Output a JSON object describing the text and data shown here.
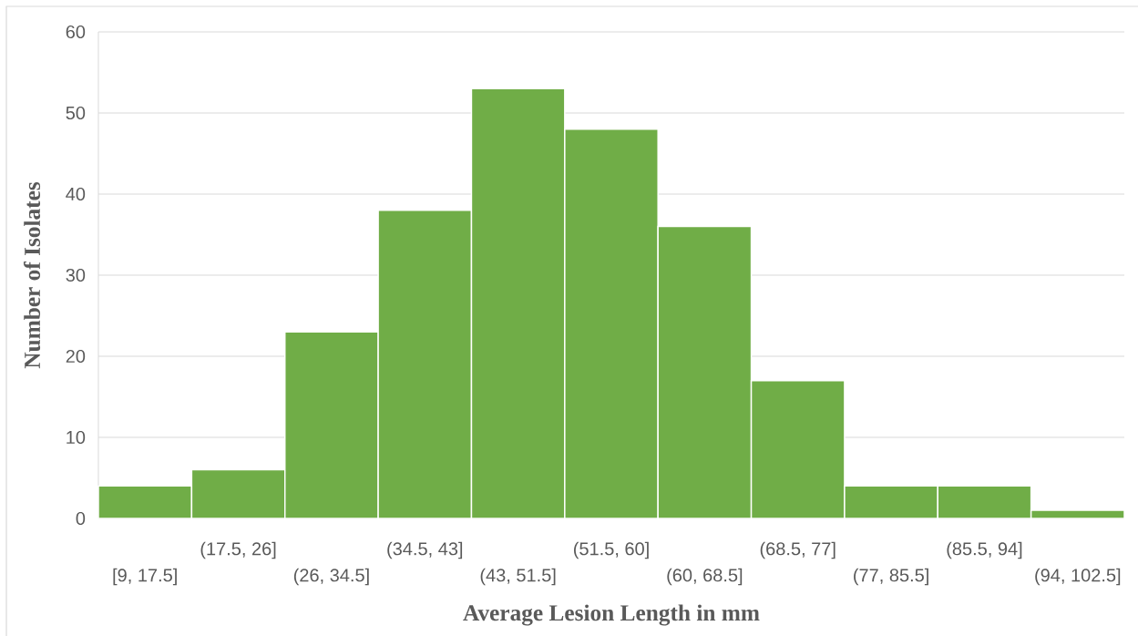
{
  "chart_data": {
    "type": "histogram",
    "xlabel": "Average Lesion Length in mm",
    "ylabel": "Number of Isolates",
    "categories": [
      "[9, 17.5]",
      "(17.5, 26]",
      "(26, 34.5]",
      "(34.5, 43]",
      "(43, 51.5]",
      "(51.5, 60]",
      "(60, 68.5]",
      "(68.5, 77]",
      "(77, 85.5]",
      "(85.5, 94]",
      "(94, 102.5]"
    ],
    "values": [
      4,
      6,
      23,
      38,
      53,
      48,
      36,
      17,
      4,
      4,
      1
    ],
    "color": "#70ad47",
    "ylim": [
      0,
      60
    ],
    "yticks": [
      0,
      10,
      20,
      30,
      40,
      50,
      60
    ],
    "grid": "y"
  }
}
